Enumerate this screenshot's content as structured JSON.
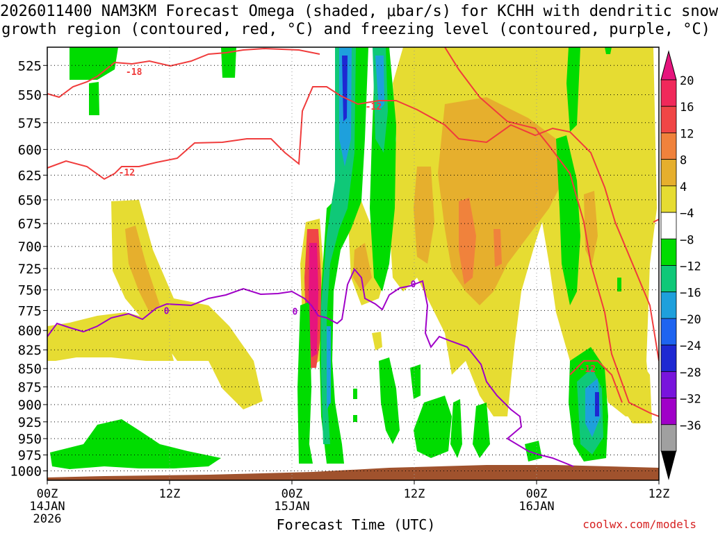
{
  "title_line1": "2026011400 NAM3KM Forecast Omega (shaded, μbar/s) for KCHH with dendritic snow",
  "title_line2": "growth region (contoured, red, °C) and freezing level (contoured, purple, °C)",
  "credit": "coolwx.com/models",
  "chart_data": {
    "type": "heatmap",
    "xlabel": "Forecast Time (UTC)",
    "ylabel": "",
    "x_ticks": [
      {
        "h": 0,
        "label": [
          "00Z",
          "14JAN",
          "2026"
        ]
      },
      {
        "h": 12,
        "label": [
          "12Z"
        ]
      },
      {
        "h": 24,
        "label": [
          "00Z",
          "15JAN"
        ]
      },
      {
        "h": 36,
        "label": [
          "12Z"
        ]
      },
      {
        "h": 48,
        "label": [
          "00Z",
          "16JAN"
        ]
      },
      {
        "h": 60,
        "label": [
          "12Z"
        ]
      }
    ],
    "xlim": [
      0,
      60
    ],
    "y_ticks": [
      525,
      550,
      575,
      600,
      625,
      650,
      675,
      700,
      725,
      750,
      775,
      800,
      825,
      850,
      875,
      900,
      925,
      950,
      975,
      1000
    ],
    "ylim": [
      510,
      1015
    ],
    "y_scale": "log-pressure",
    "grid": true,
    "colorbar": {
      "labels": [
        "20",
        "16",
        "12",
        "8",
        "4",
        "−4",
        "−8",
        "−12",
        "−16",
        "−20",
        "−24",
        "−28",
        "−32",
        "−36"
      ],
      "colors": [
        "#f0285a",
        "#f04646",
        "#f0823c",
        "#e6af2d",
        "#e6dc32",
        "#ffffff",
        "#00dc00",
        "#0fc878",
        "#1ea0dc",
        "#1e64f0",
        "#1e28d2",
        "#7814dc",
        "#a000c8",
        "#a0a0a0"
      ],
      "top_color": "#e6147d",
      "bottom_color": "#000000"
    },
    "contour_labels": [
      {
        "text": "-18",
        "color": "#f03c3c",
        "h": 8.5,
        "p": 530
      },
      {
        "text": "-12",
        "color": "#f03c3c",
        "h": 7.8,
        "p": 622
      },
      {
        "text": "-12",
        "color": "#f03c3c",
        "h": 32.0,
        "p": 560
      },
      {
        "text": "-12",
        "color": "#f03c3c",
        "h": 53.0,
        "p": 850
      },
      {
        "text": "0",
        "color": "#a000c8",
        "h": 11.7,
        "p": 775
      },
      {
        "text": "0",
        "color": "#a000c8",
        "h": 24.3,
        "p": 776
      },
      {
        "text": "0",
        "color": "#a000c8",
        "h": 35.9,
        "p": 743
      }
    ]
  }
}
